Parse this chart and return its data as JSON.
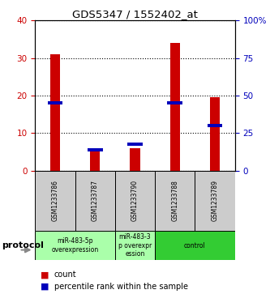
{
  "title": "GDS5347 / 1552402_at",
  "samples": [
    "GSM1233786",
    "GSM1233787",
    "GSM1233790",
    "GSM1233788",
    "GSM1233789"
  ],
  "red_values": [
    31,
    5,
    6,
    34,
    19.5
  ],
  "blue_values": [
    18,
    5.5,
    7,
    18,
    12
  ],
  "left_ylim": [
    0,
    40
  ],
  "right_ylim": [
    0,
    100
  ],
  "left_yticks": [
    0,
    10,
    20,
    30,
    40
  ],
  "right_yticks": [
    0,
    25,
    50,
    75,
    100
  ],
  "right_yticklabels": [
    "0",
    "25",
    "50",
    "75",
    "100%"
  ],
  "protocol_label": "protocol",
  "legend_red": "count",
  "legend_blue": "percentile rank within the sample",
  "red_color": "#CC0000",
  "blue_color": "#0000BB",
  "groups_info": [
    {
      "indices": [
        0,
        1
      ],
      "label": "miR-483-5p\noverexpression",
      "color": "#AAFFAA"
    },
    {
      "indices": [
        2
      ],
      "label": "miR-483-3\np overexpr\nession",
      "color": "#AAFFAA"
    },
    {
      "indices": [
        3,
        4
      ],
      "label": "control",
      "color": "#33CC33"
    }
  ]
}
